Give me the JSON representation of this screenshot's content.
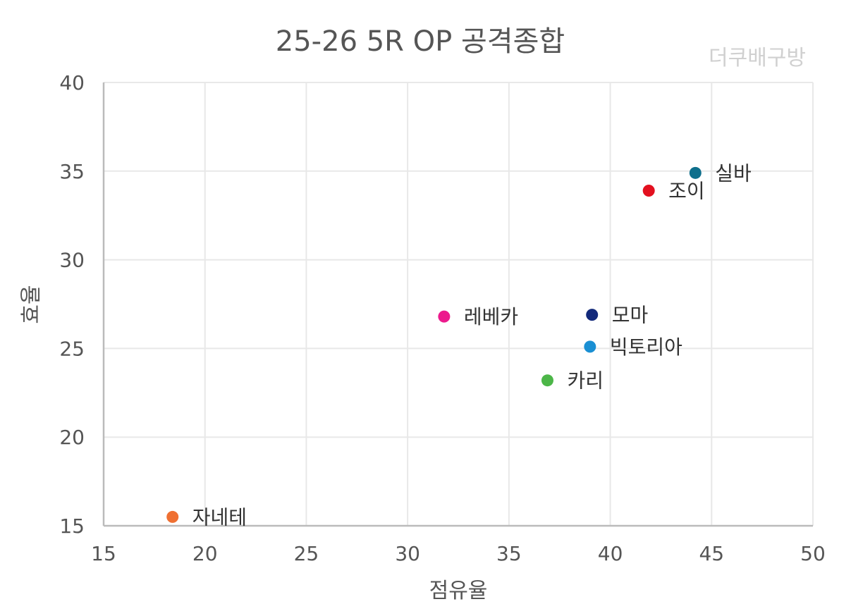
{
  "chart_data": {
    "type": "scatter",
    "title": "25-26 5R OP 공격종합",
    "watermark": "더쿠배구방",
    "xlabel": "점유율",
    "ylabel": "효율",
    "xlim": [
      15,
      50
    ],
    "ylim": [
      15,
      40
    ],
    "xticks": [
      15,
      20,
      25,
      30,
      35,
      40,
      45,
      50
    ],
    "yticks": [
      15,
      20,
      25,
      30,
      35,
      40
    ],
    "grid": true,
    "points": [
      {
        "label": "실바",
        "x": 44.2,
        "y": 34.9,
        "color": "#0e6f8c"
      },
      {
        "label": "조이",
        "x": 41.9,
        "y": 33.9,
        "color": "#e3101f"
      },
      {
        "label": "레베카",
        "x": 31.8,
        "y": 26.8,
        "color": "#ec1a8d"
      },
      {
        "label": "모마",
        "x": 39.1,
        "y": 26.9,
        "color": "#12297a"
      },
      {
        "label": "빅토리아",
        "x": 39.0,
        "y": 25.1,
        "color": "#1a8fd3"
      },
      {
        "label": "카리",
        "x": 36.9,
        "y": 23.2,
        "color": "#4cb648"
      },
      {
        "label": "자네테",
        "x": 18.4,
        "y": 15.5,
        "color": "#ef7032"
      }
    ]
  }
}
